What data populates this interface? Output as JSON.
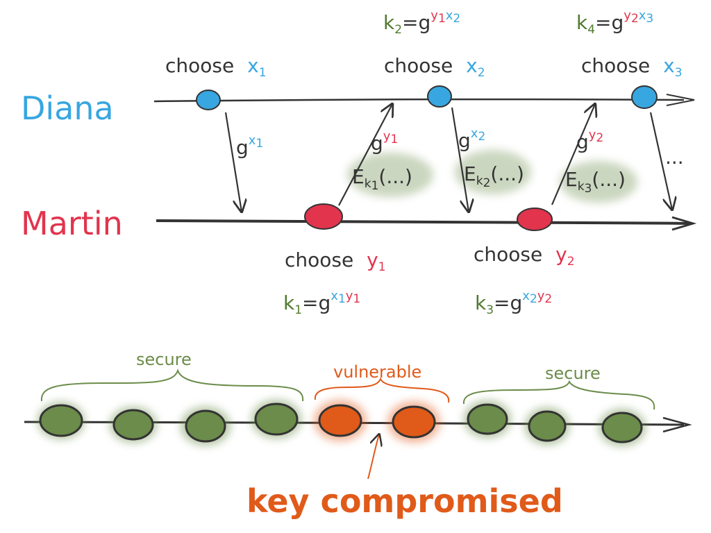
{
  "colors": {
    "diana": "#38a6e0",
    "martin": "#e2344d",
    "key_green": "#4f7a2f",
    "secure_green": "#6b8c4a",
    "vulnerable_orange": "#e05a1a",
    "line": "#333333"
  },
  "participants": {
    "diana": "Diana",
    "martin": "Martin"
  },
  "diana_steps": [
    {
      "choose": "choose",
      "var": "x",
      "sub": "1"
    },
    {
      "choose": "choose",
      "var": "x",
      "sub": "2"
    },
    {
      "choose": "choose",
      "var": "x",
      "sub": "3"
    }
  ],
  "martin_steps": [
    {
      "choose": "choose",
      "var": "y",
      "sub": "1"
    },
    {
      "choose": "choose",
      "var": "y",
      "sub": "2"
    }
  ],
  "keys": {
    "k2": {
      "k": "k",
      "sub": "2",
      "eq": "=g",
      "e1": "y",
      "e1s": "1",
      "e2": "x",
      "e2s": "2"
    },
    "k4": {
      "k": "k",
      "sub": "4",
      "eq": "=g",
      "e1": "y",
      "e1s": "2",
      "e2": "x",
      "e2s": "3"
    },
    "k1": {
      "k": "k",
      "sub": "1",
      "eq": "=g",
      "e1": "x",
      "e1s": "1",
      "e2": "y",
      "e2s": "1"
    },
    "k3": {
      "k": "k",
      "sub": "3",
      "eq": "=g",
      "e1": "x",
      "e1s": "2",
      "e2": "y",
      "e2s": "2"
    }
  },
  "messages": [
    {
      "base": "g",
      "exp": "x",
      "exp_sub": "1"
    },
    {
      "base": "g",
      "exp": "y",
      "exp_sub": "1"
    },
    {
      "base": "g",
      "exp": "x",
      "exp_sub": "2"
    },
    {
      "base": "g",
      "exp": "y",
      "exp_sub": "2"
    }
  ],
  "encryptions": [
    {
      "E": "E",
      "k": "k",
      "sub": "1",
      "rest": "(...)"
    },
    {
      "E": "E",
      "k": "k",
      "sub": "2",
      "rest": "(...)"
    },
    {
      "E": "E",
      "k": "k",
      "sub": "3",
      "rest": "(...)"
    }
  ],
  "ellipsis": "...",
  "timeline": {
    "secure_left": "secure",
    "vulnerable": "vulnerable",
    "secure_right": "secure",
    "compromised": "key compromised"
  }
}
